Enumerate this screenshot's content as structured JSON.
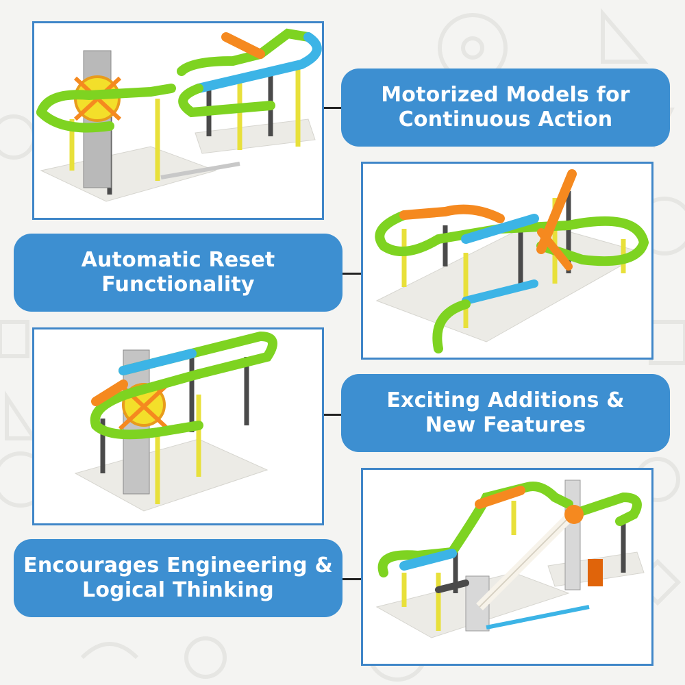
{
  "features": [
    {
      "lines": [
        "Motorized Models for",
        "Continuous Action"
      ]
    },
    {
      "lines": [
        "Automatic Reset",
        "Functionality"
      ]
    },
    {
      "lines": [
        "Exciting Additions &",
        "New Features"
      ]
    },
    {
      "lines": [
        "Encourages Engineering &",
        "Logical Thinking"
      ]
    }
  ],
  "colors": {
    "frame_border": "#3f86c8",
    "pill_background": "#3d8fd1",
    "pill_text": "#ffffff",
    "track_green": "#7ed321",
    "track_orange": "#f5891f",
    "track_blue": "#3cb4e6",
    "pillar_yellow": "#e8e03a",
    "pillar_dark": "#4a4a4a",
    "baseplate": "#ecebe6"
  },
  "images": [
    {
      "name": "motorized-coaster-model"
    },
    {
      "name": "figure-eight-coaster-model"
    },
    {
      "name": "loop-coaster-model"
    },
    {
      "name": "lift-coaster-model"
    }
  ]
}
